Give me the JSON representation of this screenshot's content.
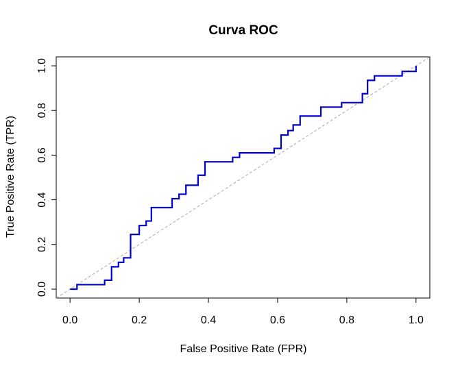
{
  "chart_data": {
    "type": "line",
    "title": "Curva ROC",
    "x_label": "False Positive Rate (FPR)",
    "y_label": "True Positive Rate (TPR)",
    "color": "#0000c8",
    "x": [
      0,
      0.02,
      0.02,
      0.1,
      0.1,
      0.12,
      0.12,
      0.14,
      0.14,
      0.155,
      0.155,
      0.175,
      0.175,
      0.2,
      0.2,
      0.22,
      0.22,
      0.235,
      0.235,
      0.295,
      0.295,
      0.315,
      0.315,
      0.335,
      0.335,
      0.37,
      0.37,
      0.39,
      0.39,
      0.47,
      0.47,
      0.49,
      0.49,
      0.59,
      0.59,
      0.61,
      0.61,
      0.63,
      0.63,
      0.645,
      0.645,
      0.665,
      0.665,
      0.725,
      0.725,
      0.785,
      0.785,
      0.845,
      0.845,
      0.86,
      0.86,
      0.88,
      0.88,
      0.96,
      0.96,
      1,
      1
    ],
    "values": [
      0,
      0,
      0.02,
      0.02,
      0.04,
      0.04,
      0.1,
      0.1,
      0.12,
      0.12,
      0.14,
      0.14,
      0.245,
      0.245,
      0.285,
      0.285,
      0.305,
      0.305,
      0.365,
      0.365,
      0.405,
      0.405,
      0.425,
      0.425,
      0.465,
      0.465,
      0.51,
      0.51,
      0.57,
      0.57,
      0.59,
      0.59,
      0.61,
      0.61,
      0.63,
      0.63,
      0.69,
      0.69,
      0.71,
      0.71,
      0.735,
      0.735,
      0.775,
      0.775,
      0.815,
      0.815,
      0.835,
      0.835,
      0.875,
      0.875,
      0.935,
      0.935,
      0.955,
      0.955,
      0.975,
      0.975,
      1
    ],
    "xlim": [
      -0.04,
      1.04
    ],
    "ylim": [
      -0.04,
      1.04
    ],
    "xticks": [
      {
        "value": 0,
        "label": "0.0"
      },
      0.2,
      0.4,
      0.6,
      0.8,
      {
        "value": 1,
        "label": "1.0"
      }
    ],
    "yticks": [
      {
        "value": 0,
        "label": "0.0"
      },
      0.2,
      0.4,
      0.6,
      0.8,
      {
        "value": 1,
        "label": "1.0"
      }
    ]
  }
}
